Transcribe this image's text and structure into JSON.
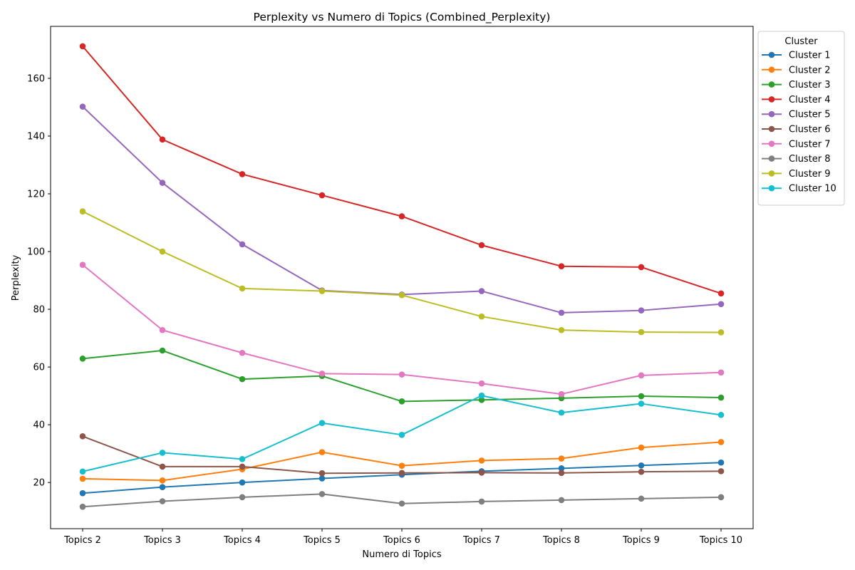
{
  "chart_data": {
    "type": "line",
    "title": "Perplexity vs Numero di Topics (Combined_Perplexity)",
    "xlabel": "Numero di Topics",
    "ylabel": "Perplexity",
    "categories": [
      "Topics 2",
      "Topics 3",
      "Topics 4",
      "Topics 5",
      "Topics 6",
      "Topics 7",
      "Topics 8",
      "Topics 9",
      "Topics 10"
    ],
    "ylim": [
      4,
      178
    ],
    "yticks": [
      20,
      40,
      60,
      80,
      100,
      120,
      140,
      160
    ],
    "grid": false,
    "legend": {
      "title": "Cluster",
      "placement": "outside-right-top"
    },
    "series": [
      {
        "name": "Cluster 1",
        "color": "#1f77b4",
        "values": [
          16.3,
          18.4,
          20.0,
          21.4,
          22.7,
          23.9,
          24.9,
          25.9,
          26.9
        ]
      },
      {
        "name": "Cluster 2",
        "color": "#ff7f0e",
        "values": [
          21.3,
          20.7,
          24.6,
          30.5,
          25.8,
          27.6,
          28.3,
          32.1,
          34.0
        ]
      },
      {
        "name": "Cluster 3",
        "color": "#2ca02c",
        "values": [
          62.9,
          65.7,
          55.8,
          56.9,
          48.1,
          48.6,
          49.2,
          49.9,
          49.4
        ]
      },
      {
        "name": "Cluster 4",
        "color": "#d62728",
        "values": [
          171.1,
          138.8,
          126.8,
          119.5,
          112.2,
          102.2,
          94.9,
          94.6,
          85.5
        ]
      },
      {
        "name": "Cluster 5",
        "color": "#9467bd",
        "values": [
          150.2,
          123.8,
          102.5,
          86.5,
          85.1,
          86.3,
          78.8,
          79.6,
          81.8
        ]
      },
      {
        "name": "Cluster 6",
        "color": "#8c564b",
        "values": [
          36.0,
          25.5,
          25.5,
          23.2,
          23.3,
          23.4,
          23.3,
          23.7,
          23.9
        ]
      },
      {
        "name": "Cluster 7",
        "color": "#e377c2",
        "values": [
          95.4,
          72.8,
          64.9,
          57.7,
          57.4,
          54.3,
          50.6,
          57.1,
          58.1
        ]
      },
      {
        "name": "Cluster 8",
        "color": "#7f7f7f",
        "values": [
          11.6,
          13.5,
          14.9,
          16.0,
          12.7,
          13.4,
          13.9,
          14.4,
          14.9
        ]
      },
      {
        "name": "Cluster 9",
        "color": "#bcbd22",
        "values": [
          113.9,
          100.0,
          87.2,
          86.3,
          84.9,
          77.5,
          72.8,
          72.1,
          72.0
        ]
      },
      {
        "name": "Cluster 10",
        "color": "#17becf",
        "values": [
          23.8,
          30.3,
          28.1,
          40.6,
          36.5,
          50.1,
          44.2,
          47.3,
          43.4
        ]
      }
    ]
  }
}
